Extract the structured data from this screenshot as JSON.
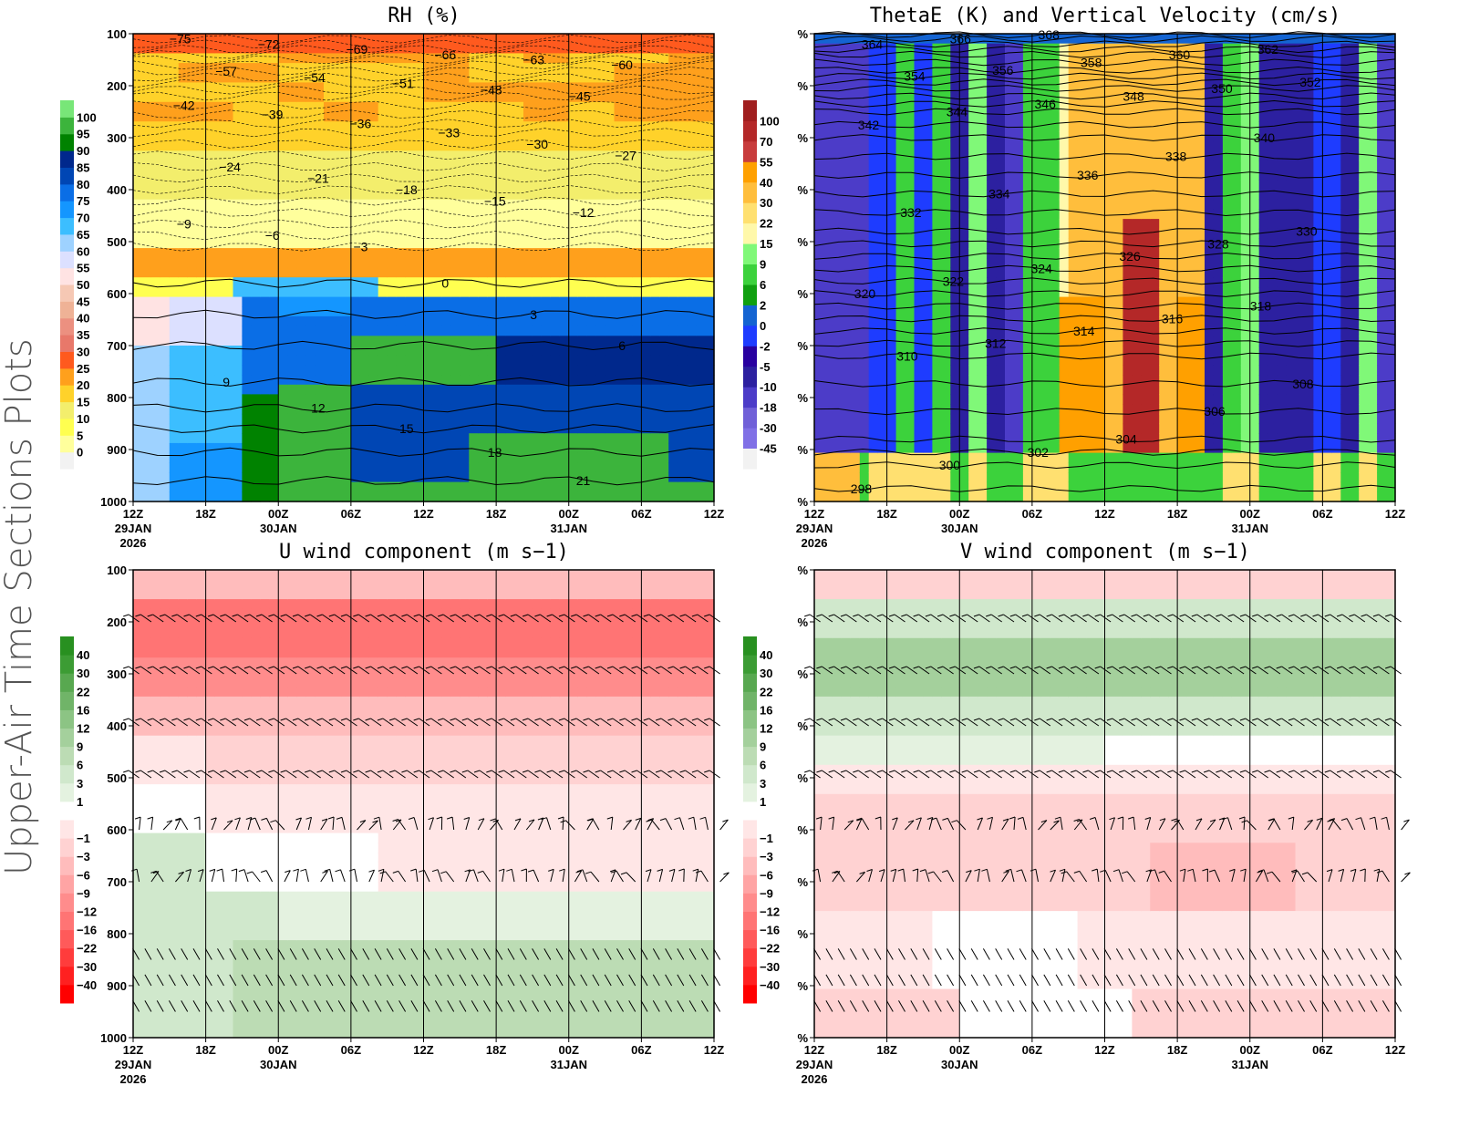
{
  "side_title": "Upper-Air Time Sections Plots",
  "chart_data": [
    {
      "type": "heatmap",
      "title": "RH (%)",
      "y_ticks": [
        "100",
        "200",
        "300",
        "400",
        "500",
        "600",
        "700",
        "800",
        "900",
        "1000"
      ],
      "x_ticks": [
        "12Z",
        "18Z",
        "00Z",
        "06Z",
        "12Z",
        "18Z",
        "00Z",
        "06Z",
        "12Z"
      ],
      "x_dates": [
        {
          "at": 0,
          "text": "29JAN"
        },
        {
          "at": 0,
          "text2": "2026"
        },
        {
          "at": 2,
          "text": "30JAN"
        },
        {
          "at": 6,
          "text": "31JAN"
        }
      ],
      "colorbar": {
        "labels": [
          "0",
          "5",
          "10",
          "15",
          "20",
          "25",
          "30",
          "35",
          "40",
          "45",
          "50",
          "55",
          "60",
          "65",
          "70",
          "75",
          "80",
          "85",
          "90",
          "95",
          "100"
        ],
        "colors": [
          "#f2f2f2",
          "#ffff9c",
          "#ffff50",
          "#f3ee6c",
          "#ffd22a",
          "#ffa01c",
          "#ff5a1e",
          "#e8786a",
          "#ec9080",
          "#efb296",
          "#f6c8b4",
          "#ffe3e3",
          "#dce0ff",
          "#9ed2ff",
          "#3cbeff",
          "#1496ff",
          "#0a6ee6",
          "#0046b4",
          "#00288c",
          "#008200",
          "#3cb43c",
          "#78e678"
        ]
      },
      "contour_levels": [
        -75,
        -72,
        -69,
        -66,
        -63,
        -60,
        -57,
        -54,
        -51,
        -48,
        -45,
        -42,
        -39,
        -36,
        -33,
        -30,
        -27,
        -24,
        -21,
        -18,
        -15,
        -12,
        -9,
        -6,
        -3,
        0,
        3,
        6,
        9,
        12,
        15,
        18,
        21
      ]
    },
    {
      "type": "heatmap",
      "title": "ThetaE (K) and Vertical Velocity (cm/s)",
      "y_ticks": [
        "%",
        "%",
        "%",
        "%",
        "%",
        "%",
        "%",
        "%",
        "%",
        "%"
      ],
      "x_ticks": [
        "12Z",
        "18Z",
        "00Z",
        "06Z",
        "12Z",
        "18Z",
        "00Z",
        "06Z",
        "12Z"
      ],
      "x_dates": [
        {
          "at": 0,
          "text": "29JAN"
        },
        {
          "at": 0,
          "text2": "2026"
        },
        {
          "at": 2,
          "text": "30JAN"
        },
        {
          "at": 6,
          "text": "31JAN"
        }
      ],
      "colorbar": {
        "labels": [
          "-45",
          "-30",
          "-18",
          "-10",
          "-5",
          "-2",
          "0",
          "2",
          "6",
          "9",
          "15",
          "22",
          "30",
          "40",
          "55",
          "70",
          "100"
        ],
        "colors": [
          "#f2f2f2",
          "#8070e6",
          "#7060d8",
          "#4c3cc8",
          "#2c20a0",
          "#2800a0",
          "#1e3cff",
          "#1464d2",
          "#10a010",
          "#3cd23c",
          "#80f878",
          "#fff8aa",
          "#ffe070",
          "#ffbe3c",
          "#ffa000",
          "#c83c3c",
          "#b42828",
          "#a01e1e"
        ]
      },
      "contour_levels": [
        298,
        300,
        302,
        304,
        306,
        308,
        310,
        312,
        314,
        316,
        318,
        320,
        322,
        324,
        326,
        328,
        330,
        332,
        334,
        336,
        338,
        340,
        342,
        344,
        346,
        348,
        350,
        352,
        354,
        356,
        358,
        360,
        362,
        364,
        366,
        368
      ]
    },
    {
      "type": "heatmap",
      "title": "U wind component (m s−1)",
      "y_ticks": [
        "100",
        "200",
        "300",
        "400",
        "500",
        "600",
        "700",
        "800",
        "900",
        "1000"
      ],
      "x_ticks": [
        "12Z",
        "18Z",
        "00Z",
        "06Z",
        "12Z",
        "18Z",
        "00Z",
        "06Z",
        "12Z"
      ],
      "x_dates": [
        {
          "at": 0,
          "text": "29JAN"
        },
        {
          "at": 0,
          "text2": "2026"
        },
        {
          "at": 2,
          "text": "30JAN"
        },
        {
          "at": 6,
          "text": "31JAN"
        }
      ],
      "colorbar": {
        "labels": [
          "40",
          "30",
          "22",
          "16",
          "12",
          "9",
          "6",
          "3",
          "1",
          "",
          "−1",
          "−3",
          "−6",
          "−9",
          "−12",
          "−16",
          "−22",
          "−30",
          "−40"
        ],
        "colors": [
          "#ff0000",
          "#ff2020",
          "#ff3c3c",
          "#ff5a5a",
          "#ff7474",
          "#ff8c8c",
          "#ffa4a4",
          "#ffbcbc",
          "#ffd2d2",
          "#ffe6e6",
          "#ffffff",
          "#e4f2e0",
          "#d0e8cc",
          "#bcdcb4",
          "#a4d09c",
          "#8cc484",
          "#70b468",
          "#58a850",
          "#3c9c34",
          "#289020"
        ]
      },
      "barb_levels": [
        200,
        300,
        400,
        500,
        600,
        700,
        850,
        900,
        950
      ]
    },
    {
      "type": "heatmap",
      "title": "V wind component (m s−1)",
      "y_ticks": [
        "%",
        "%",
        "%",
        "%",
        "%",
        "%",
        "%",
        "%",
        "%",
        "%"
      ],
      "x_ticks": [
        "12Z",
        "18Z",
        "00Z",
        "06Z",
        "12Z",
        "18Z",
        "00Z",
        "06Z",
        "12Z"
      ],
      "x_dates": [
        {
          "at": 0,
          "text": "29JAN"
        },
        {
          "at": 0,
          "text2": "2026"
        },
        {
          "at": 2,
          "text": "30JAN"
        },
        {
          "at": 6,
          "text": "31JAN"
        }
      ],
      "colorbar": {
        "labels": [
          "40",
          "30",
          "22",
          "16",
          "12",
          "9",
          "6",
          "3",
          "1",
          "",
          "−1",
          "−3",
          "−6",
          "−9",
          "−12",
          "−16",
          "−22",
          "−30",
          "−40"
        ],
        "colors": [
          "#ff0000",
          "#ff2020",
          "#ff3c3c",
          "#ff5a5a",
          "#ff7474",
          "#ff8c8c",
          "#ffa4a4",
          "#ffbcbc",
          "#ffd2d2",
          "#ffe6e6",
          "#ffffff",
          "#e4f2e0",
          "#d0e8cc",
          "#bcdcb4",
          "#a4d09c",
          "#8cc484",
          "#70b468",
          "#58a850",
          "#3c9c34",
          "#289020"
        ]
      },
      "barb_levels": [
        200,
        300,
        400,
        500,
        600,
        700,
        850,
        900,
        950
      ]
    }
  ]
}
